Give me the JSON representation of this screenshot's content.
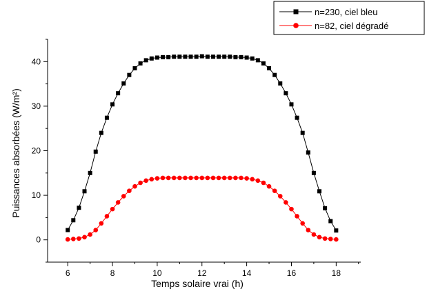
{
  "chart_data": {
    "type": "line",
    "title": "",
    "xlabel": "Temps solaire vrai (h)",
    "ylabel": "Puissances absorbées (W/m²)",
    "xlim": [
      5.1,
      19.1
    ],
    "ylim": [
      -5,
      45
    ],
    "xticks": [
      6,
      8,
      10,
      12,
      14,
      16,
      18
    ],
    "yticks": [
      0,
      10,
      20,
      30,
      40
    ],
    "grid": false,
    "legend_position": "top-right, outside plot",
    "x": [
      6.0,
      6.25,
      6.5,
      6.75,
      7.0,
      7.25,
      7.5,
      7.75,
      8.0,
      8.25,
      8.5,
      8.75,
      9.0,
      9.25,
      9.5,
      9.75,
      10.0,
      10.25,
      10.5,
      10.75,
      11.0,
      11.25,
      11.5,
      11.75,
      12.0,
      12.25,
      12.5,
      12.75,
      13.0,
      13.25,
      13.5,
      13.75,
      14.0,
      14.25,
      14.5,
      14.75,
      15.0,
      15.25,
      15.5,
      15.75,
      16.0,
      16.25,
      16.5,
      16.75,
      17.0,
      17.25,
      17.5,
      17.75,
      18.0
    ],
    "series": [
      {
        "name": "n=230, ciel bleu",
        "color": "#000000",
        "marker": "square",
        "values": [
          2.2,
          4.4,
          7.2,
          10.9,
          15.0,
          19.8,
          24.0,
          27.4,
          30.4,
          32.9,
          35.1,
          37.0,
          38.5,
          39.6,
          40.3,
          40.7,
          40.9,
          41.0,
          41.0,
          41.1,
          41.1,
          41.1,
          41.1,
          41.1,
          41.2,
          41.1,
          41.1,
          41.1,
          41.1,
          41.1,
          41.0,
          41.0,
          40.9,
          40.7,
          40.3,
          39.6,
          38.5,
          37.0,
          35.1,
          32.9,
          30.4,
          27.4,
          24.0,
          19.6,
          15.0,
          10.9,
          7.1,
          4.2,
          2.1
        ]
      },
      {
        "name": "n=82, ciel dégradé",
        "color": "#ff0000",
        "marker": "circle",
        "values": [
          0.1,
          0.2,
          0.3,
          0.6,
          1.2,
          2.2,
          3.7,
          5.3,
          6.9,
          8.4,
          9.8,
          11.0,
          12.0,
          12.8,
          13.3,
          13.6,
          13.8,
          13.9,
          13.9,
          13.9,
          13.9,
          13.9,
          13.9,
          13.9,
          13.9,
          13.9,
          13.9,
          13.9,
          13.9,
          13.9,
          13.9,
          13.9,
          13.8,
          13.6,
          13.3,
          12.8,
          12.0,
          11.0,
          9.8,
          8.4,
          6.9,
          5.3,
          3.7,
          2.2,
          1.2,
          0.6,
          0.3,
          0.2,
          0.1
        ]
      }
    ]
  }
}
